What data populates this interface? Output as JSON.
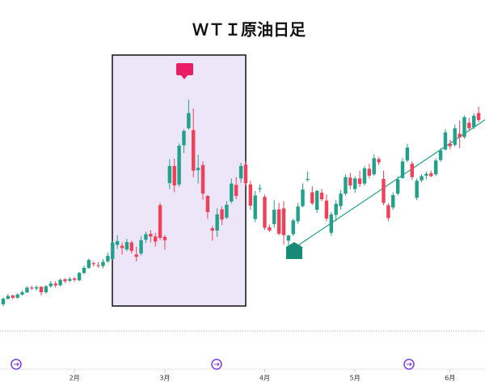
{
  "chart_data": {
    "type": "candlestick",
    "title": "ＷＴＩ原油日足",
    "up_color": "#22a08a",
    "down_color": "#f0405a",
    "ylim": [
      80,
      145
    ],
    "xlim": [
      0,
      101
    ],
    "xticks": [
      {
        "value": 15,
        "label": "2月"
      },
      {
        "value": 34,
        "label": "3月"
      },
      {
        "value": 55,
        "label": "4月"
      },
      {
        "value": 74,
        "label": "5月"
      },
      {
        "value": 94,
        "label": "6月"
      }
    ],
    "open": [
      86.0,
      87.2,
      87.9,
      87.4,
      88.1,
      88.6,
      89.6,
      89.4,
      89.8,
      88.6,
      89.9,
      90.5,
      90.1,
      91.4,
      91.1,
      91.6,
      91.2,
      92.8,
      93.9,
      94.9,
      94.5,
      94.3,
      95.3,
      95.8,
      98.9,
      98.7,
      97.9,
      99.4,
      96.8,
      97.0,
      100.0,
      101.3,
      100.7,
      107.5,
      100.6,
      112.3,
      116.0,
      112.0,
      120.5,
      124.2,
      123.8,
      115.1,
      116.2,
      109.5,
      102.5,
      102.0,
      106.6,
      104.8,
      108.3,
      111.9,
      113.3,
      116.3,
      112.0,
      104.5,
      111.0,
      109.3,
      102.7,
      103.4,
      106.6,
      106.8,
      99.8,
      101.2,
      104.0,
      107.3,
      113.0,
      110.3,
      106.5,
      110.2,
      108.5,
      101.5,
      105.4,
      107.3,
      110.0,
      113.5,
      111.0,
      113.3,
      112.2,
      115.4,
      114.2,
      117.5,
      113.2,
      107.5,
      107.0,
      110.0,
      113.4,
      117.2,
      116.5,
      109.1,
      112.9,
      113.9,
      114.4,
      114.2,
      117.3,
      119.6,
      120.8,
      120.6,
      123.0,
      122.3,
      125.4,
      124.4,
      127.5
    ],
    "high": [
      87.5,
      88.2,
      88.1,
      88.4,
      89.0,
      89.9,
      90.0,
      90.1,
      89.9,
      90.2,
      91.1,
      91.0,
      91.6,
      91.7,
      91.9,
      92.0,
      93.0,
      94.4,
      95.9,
      95.3,
      95.2,
      95.8,
      97.2,
      99.8,
      101.0,
      99.4,
      100.2,
      99.8,
      98.5,
      100.8,
      101.8,
      102.1,
      101.5,
      108.0,
      101.0,
      117.5,
      117.6,
      120.9,
      124.0,
      130.4,
      128.5,
      118.4,
      117.0,
      109.7,
      103.0,
      106.8,
      107.2,
      108.4,
      113.3,
      113.6,
      116.7,
      117.0,
      112.8,
      110.6,
      112.0,
      109.8,
      103.3,
      108.6,
      108.0,
      108.4,
      101.1,
      104.6,
      108.0,
      112.2,
      114.8,
      111.6,
      110.8,
      111.0,
      109.8,
      106.0,
      108.6,
      110.8,
      114.2,
      114.5,
      113.8,
      115.0,
      116.0,
      116.5,
      118.5,
      118.0,
      115.0,
      107.9,
      110.3,
      113.8,
      117.7,
      120.8,
      117.0,
      113.3,
      114.2,
      114.8,
      115.0,
      117.7,
      119.9,
      124.0,
      121.7,
      125.0,
      125.9,
      127.0,
      126.4,
      127.5,
      128.9
    ],
    "low": [
      85.6,
      87.0,
      87.1,
      87.2,
      87.9,
      88.4,
      89.1,
      89.0,
      87.9,
      88.3,
      89.6,
      89.6,
      89.9,
      90.6,
      90.8,
      90.9,
      91.0,
      92.5,
      93.7,
      94.2,
      93.9,
      93.8,
      95.0,
      95.6,
      98.0,
      96.8,
      97.5,
      97.0,
      95.3,
      96.6,
      99.3,
      99.4,
      98.5,
      99.9,
      97.8,
      111.0,
      110.3,
      111.5,
      118.8,
      123.9,
      113.5,
      112.2,
      108.7,
      104.5,
      99.8,
      100.6,
      103.2,
      104.5,
      107.9,
      108.8,
      112.4,
      111.6,
      106.5,
      103.8,
      110.3,
      102.1,
      101.7,
      102.6,
      101.0,
      98.9,
      98.8,
      100.8,
      103.5,
      107.0,
      112.6,
      107.5,
      105.8,
      108.4,
      104.0,
      100.8,
      104.0,
      106.5,
      109.6,
      111.0,
      110.2,
      111.4,
      111.8,
      113.3,
      113.9,
      116.2,
      107.5,
      104.0,
      106.5,
      109.6,
      113.2,
      116.8,
      113.0,
      108.6,
      112.5,
      113.1,
      113.6,
      113.8,
      116.9,
      119.3,
      119.6,
      120.2,
      119.9,
      121.9,
      123.8,
      124.0,
      125.5
    ],
    "close": [
      87.2,
      87.8,
      87.4,
      88.1,
      88.6,
      89.6,
      89.4,
      89.7,
      88.6,
      89.9,
      90.5,
      90.1,
      91.3,
      91.0,
      91.5,
      91.3,
      92.8,
      93.9,
      95.6,
      94.7,
      94.3,
      95.2,
      96.5,
      99.4,
      99.7,
      98.2,
      99.5,
      97.6,
      96.3,
      99.9,
      101.2,
      100.7,
      99.6,
      100.4,
      99.9,
      116.0,
      111.8,
      120.4,
      123.6,
      127.5,
      115.0,
      115.6,
      110.0,
      106.0,
      102.0,
      105.5,
      104.4,
      107.6,
      112.2,
      109.5,
      116.0,
      112.3,
      107.4,
      109.6,
      111.2,
      102.6,
      102.0,
      106.5,
      101.3,
      101.0,
      100.9,
      104.2,
      107.2,
      110.9,
      113.2,
      107.9,
      110.6,
      108.8,
      104.6,
      105.5,
      107.8,
      110.0,
      113.6,
      111.8,
      113.3,
      112.1,
      115.5,
      113.9,
      117.7,
      116.8,
      108.0,
      104.7,
      109.7,
      113.1,
      117.0,
      120.0,
      113.6,
      112.8,
      113.8,
      114.3,
      113.8,
      117.2,
      119.4,
      123.3,
      120.3,
      124.2,
      122.2,
      126.6,
      124.2,
      126.9,
      126.0
    ]
  }
}
